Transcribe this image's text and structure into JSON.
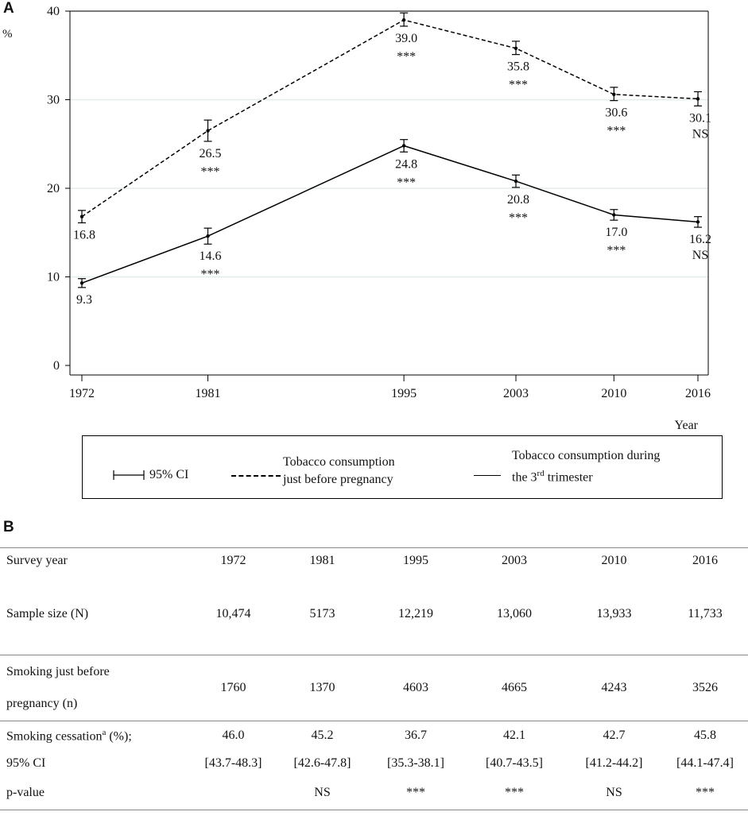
{
  "panel_a_label": "A",
  "panel_b_label": "B",
  "chart_data": {
    "type": "line",
    "title": "",
    "xlabel": "Year",
    "ylabel": "%",
    "x": [
      1972,
      1981,
      1995,
      2003,
      2010,
      2016
    ],
    "x_tick_labels": [
      "1972",
      "1981",
      "1995",
      "2003",
      "2010",
      "2016"
    ],
    "y_ticks": [
      0,
      10,
      20,
      30,
      40
    ],
    "y_tick_labels": [
      "0",
      "10",
      "20",
      "30",
      "40"
    ],
    "ylim": [
      0,
      40
    ],
    "grid": true,
    "series": [
      {
        "name": "Tobacco consumption just before pregnancy",
        "style": "dashed",
        "values": [
          16.8,
          26.5,
          39.0,
          35.8,
          30.6,
          30.1
        ],
        "ci_low": [
          16.1,
          25.3,
          38.3,
          35.1,
          29.9,
          29.3
        ],
        "ci_high": [
          17.5,
          27.7,
          39.8,
          36.6,
          31.4,
          30.9
        ],
        "value_labels": [
          "16.8",
          "26.5",
          "39.0",
          "35.8",
          "30.6",
          "30.1"
        ],
        "significance": [
          "",
          "***",
          "***",
          "***",
          "***",
          "NS"
        ]
      },
      {
        "name": "Tobacco consumption during the 3rd trimester",
        "style": "solid",
        "values": [
          9.3,
          14.6,
          24.8,
          20.8,
          17.0,
          16.2
        ],
        "ci_low": [
          8.8,
          13.7,
          24.1,
          20.1,
          16.4,
          15.6
        ],
        "ci_high": [
          9.8,
          15.5,
          25.5,
          21.5,
          17.6,
          16.8
        ],
        "value_labels": [
          "9.3",
          "14.6",
          "24.8",
          "20.8",
          "17.0",
          "16.2"
        ],
        "significance": [
          "",
          "***",
          "***",
          "***",
          "***",
          "NS"
        ]
      }
    ]
  },
  "legend": {
    "ci_label": "95% CI",
    "dashed_label_line1": "Tobacco consumption",
    "dashed_label_line2": "just before pregnancy",
    "solid_label_line1": "Tobacco consumption during",
    "solid_label_line2_pre": "the 3",
    "solid_label_line2_sup": "rd",
    "solid_label_line2_post": " trimester"
  },
  "table": {
    "header_label": "Survey year",
    "years": [
      "1972",
      "1981",
      "1995",
      "2003",
      "2010",
      "2016"
    ],
    "sample_size_label": "Sample size (N)",
    "sample_size": [
      "10,474",
      "5173",
      "12,219",
      "13,060",
      "13,933",
      "11,733"
    ],
    "smoking_label_line1": "Smoking just before",
    "smoking_label_line2": "pregnancy (n)",
    "smoking": [
      "1760",
      "1370",
      "4603",
      "4665",
      "4243",
      "3526"
    ],
    "cessation_label_pre": "Smoking cessation",
    "cessation_label_sup": "a",
    "cessation_label_post": " (%);",
    "cessation": [
      "46.0",
      "45.2",
      "36.7",
      "42.1",
      "42.7",
      "45.8"
    ],
    "ci_label": "95% CI",
    "ci": [
      "[43.7-48.3]",
      "[42.6-47.8]",
      "[35.3-38.1]",
      "[40.7-43.5]",
      "[41.2-44.2]",
      "[44.1-47.4]"
    ],
    "pvalue_label": "p-value",
    "pvalue": [
      "",
      "NS",
      "***",
      "***",
      "NS",
      "***"
    ]
  }
}
